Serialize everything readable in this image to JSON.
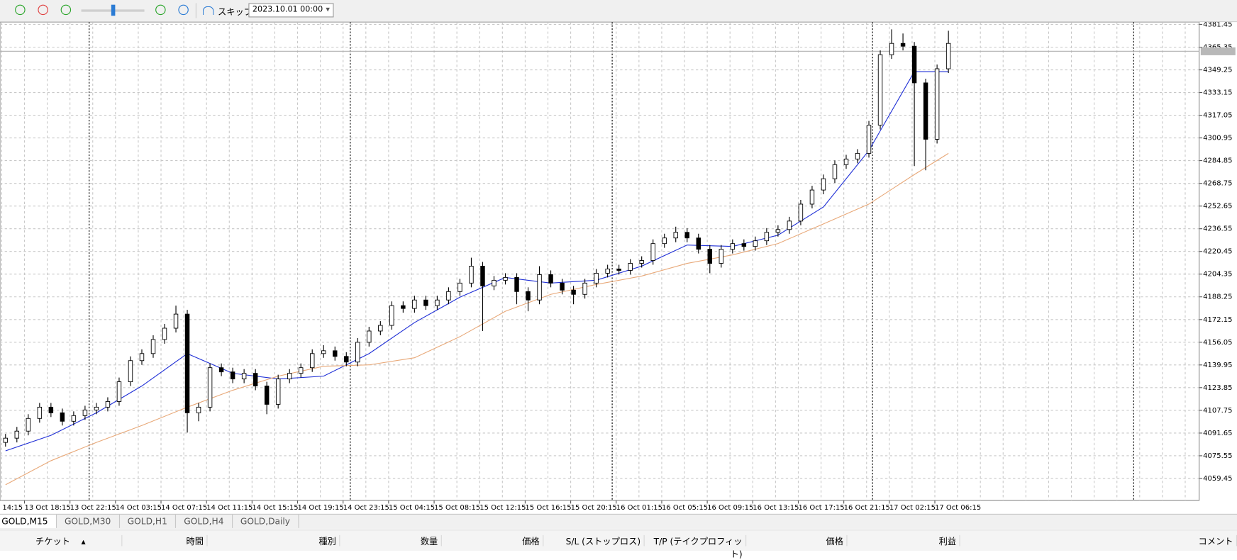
{
  "toolbar": {
    "skip_label": "スキップ",
    "date": "2023.10.01 00:00"
  },
  "chart_data": {
    "type": "candlestick",
    "time_labels": [
      "14:15",
      "13 Oct 18:15",
      "13 Oct 22:15",
      "14 Oct 03:15",
      "14 Oct 07:15",
      "14 Oct 11:15",
      "14 Oct 15:15",
      "14 Oct 19:15",
      "14 Oct 23:15",
      "15 Oct 04:15",
      "15 Oct 08:15",
      "15 Oct 12:15",
      "15 Oct 16:15",
      "15 Oct 20:15",
      "16 Oct 01:15",
      "16 Oct 05:15",
      "16 Oct 09:15",
      "16 Oct 13:15",
      "16 Oct 17:15",
      "16 Oct 21:15",
      "17 Oct 02:15",
      "17 Oct 06:15"
    ],
    "open": [
      4085,
      4088,
      4093,
      4102,
      4110,
      4106,
      4100,
      4104,
      4108,
      4110,
      4114,
      4128,
      4143,
      4148,
      4158,
      4166,
      4176,
      4106,
      4110,
      4138,
      4135,
      4130,
      4134,
      4125,
      4112,
      4130,
      4134,
      4138,
      4148,
      4150,
      4146,
      4142,
      4156,
      4164,
      4168,
      4182,
      4180,
      4186,
      4182,
      4186,
      4192,
      4198,
      4210,
      4196,
      4200,
      4202,
      4192,
      4186,
      4204,
      4198,
      4193,
      4190,
      4198,
      4205,
      4208,
      4207,
      4212,
      4214,
      4226,
      4230,
      4234,
      4230,
      4222,
      4212,
      4222,
      4226,
      4224,
      4228,
      4234,
      4236,
      4242,
      4254,
      4264,
      4272,
      4282,
      4286,
      4290,
      4310,
      4360,
      4368,
      4366,
      4340,
      4300,
      4350
    ],
    "high": [
      4091,
      4096,
      4105,
      4113,
      4113,
      4109,
      4107,
      4111,
      4113,
      4117,
      4131,
      4146,
      4151,
      4161,
      4169,
      4182,
      4179,
      4113,
      4141,
      4141,
      4138,
      4137,
      4137,
      4128,
      4133,
      4137,
      4141,
      4151,
      4154,
      4153,
      4149,
      4159,
      4167,
      4171,
      4185,
      4185,
      4189,
      4189,
      4189,
      4195,
      4201,
      4216,
      4213,
      4203,
      4205,
      4205,
      4195,
      4210,
      4207,
      4201,
      4196,
      4201,
      4208,
      4211,
      4211,
      4215,
      4217,
      4229,
      4233,
      4238,
      4237,
      4233,
      4225,
      4225,
      4229,
      4229,
      4231,
      4237,
      4239,
      4245,
      4257,
      4267,
      4275,
      4285,
      4289,
      4293,
      4313,
      4363,
      4378,
      4375,
      4369,
      4343,
      4353,
      4377
    ],
    "low": [
      4082,
      4085,
      4090,
      4099,
      4103,
      4097,
      4097,
      4101,
      4105,
      4107,
      4111,
      4125,
      4140,
      4145,
      4155,
      4163,
      4092,
      4100,
      4107,
      4132,
      4127,
      4127,
      4122,
      4105,
      4109,
      4127,
      4131,
      4135,
      4145,
      4143,
      4139,
      4139,
      4153,
      4161,
      4165,
      4177,
      4177,
      4179,
      4179,
      4183,
      4189,
      4195,
      4164,
      4193,
      4197,
      4183,
      4178,
      4183,
      4195,
      4190,
      4183,
      4187,
      4195,
      4202,
      4204,
      4204,
      4209,
      4211,
      4223,
      4227,
      4227,
      4219,
      4205,
      4209,
      4219,
      4221,
      4221,
      4225,
      4231,
      4233,
      4239,
      4251,
      4261,
      4269,
      4279,
      4283,
      4287,
      4307,
      4357,
      4363,
      4281,
      4278,
      4297,
      4347
    ],
    "close": [
      4088,
      4093,
      4102,
      4110,
      4106,
      4100,
      4104,
      4108,
      4110,
      4114,
      4128,
      4143,
      4148,
      4158,
      4166,
      4176,
      4106,
      4110,
      4138,
      4135,
      4130,
      4134,
      4125,
      4112,
      4130,
      4134,
      4138,
      4148,
      4150,
      4146,
      4142,
      4156,
      4164,
      4168,
      4182,
      4180,
      4186,
      4182,
      4186,
      4192,
      4198,
      4210,
      4196,
      4200,
      4202,
      4192,
      4186,
      4204,
      4198,
      4193,
      4190,
      4198,
      4205,
      4208,
      4207,
      4212,
      4214,
      4226,
      4230,
      4234,
      4230,
      4222,
      4212,
      4222,
      4226,
      4224,
      4228,
      4234,
      4236,
      4242,
      4254,
      4264,
      4272,
      4282,
      4286,
      4290,
      4310,
      4360,
      4368,
      4366,
      4340,
      4300,
      4350,
      4368
    ],
    "lines": [
      {
        "color": "#1f2fd6",
        "x": [
          0,
          4,
          8,
          12,
          16,
          20,
          24,
          28,
          32,
          36,
          40,
          44,
          48,
          52,
          56,
          60,
          64,
          68,
          72,
          76,
          80,
          83
        ],
        "values": [
          4079,
          4090,
          4106,
          4125,
          4148,
          4134,
          4130,
          4132,
          4148,
          4170,
          4188,
          4202,
          4198,
          4200,
          4210,
          4225,
          4224,
          4232,
          4252,
          4292,
          4348,
          4348
        ]
      },
      {
        "color": "#e8a878",
        "x": [
          0,
          4,
          8,
          12,
          16,
          20,
          24,
          28,
          32,
          36,
          40,
          44,
          48,
          52,
          56,
          60,
          64,
          68,
          72,
          76,
          80,
          83
        ],
        "values": [
          4055,
          4072,
          4085,
          4097,
          4110,
          4122,
          4132,
          4139,
          4140,
          4145,
          4160,
          4178,
          4190,
          4197,
          4203,
          4212,
          4218,
          4226,
          4240,
          4254,
          4275,
          4290
        ]
      }
    ],
    "current_price": 4362.4,
    "ylim": [
      4043.85,
      4383.13
    ],
    "yticks": [
      4381.45,
      4365.35,
      4349.25,
      4333.15,
      4317.05,
      4300.95,
      4284.85,
      4268.75,
      4252.65,
      4236.55,
      4220.45,
      4204.35,
      4188.25,
      4172.15,
      4156.05,
      4139.95,
      4123.85,
      4107.75,
      4091.65,
      4075.55,
      4059.45
    ],
    "grid": true,
    "bull_color": "#ffffff",
    "bear_color": "#000000"
  },
  "tabs": [
    "GOLD,M15",
    "GOLD,M30",
    "GOLD,H1",
    "GOLD,H4",
    "GOLD,Daily"
  ],
  "table": {
    "headers": [
      "チケット",
      "時間",
      "種別",
      "数量",
      "価格",
      "S/L (ストップロス)",
      "T/P (テイクプロフィット)",
      "価格",
      "利益",
      "コメント"
    ]
  }
}
